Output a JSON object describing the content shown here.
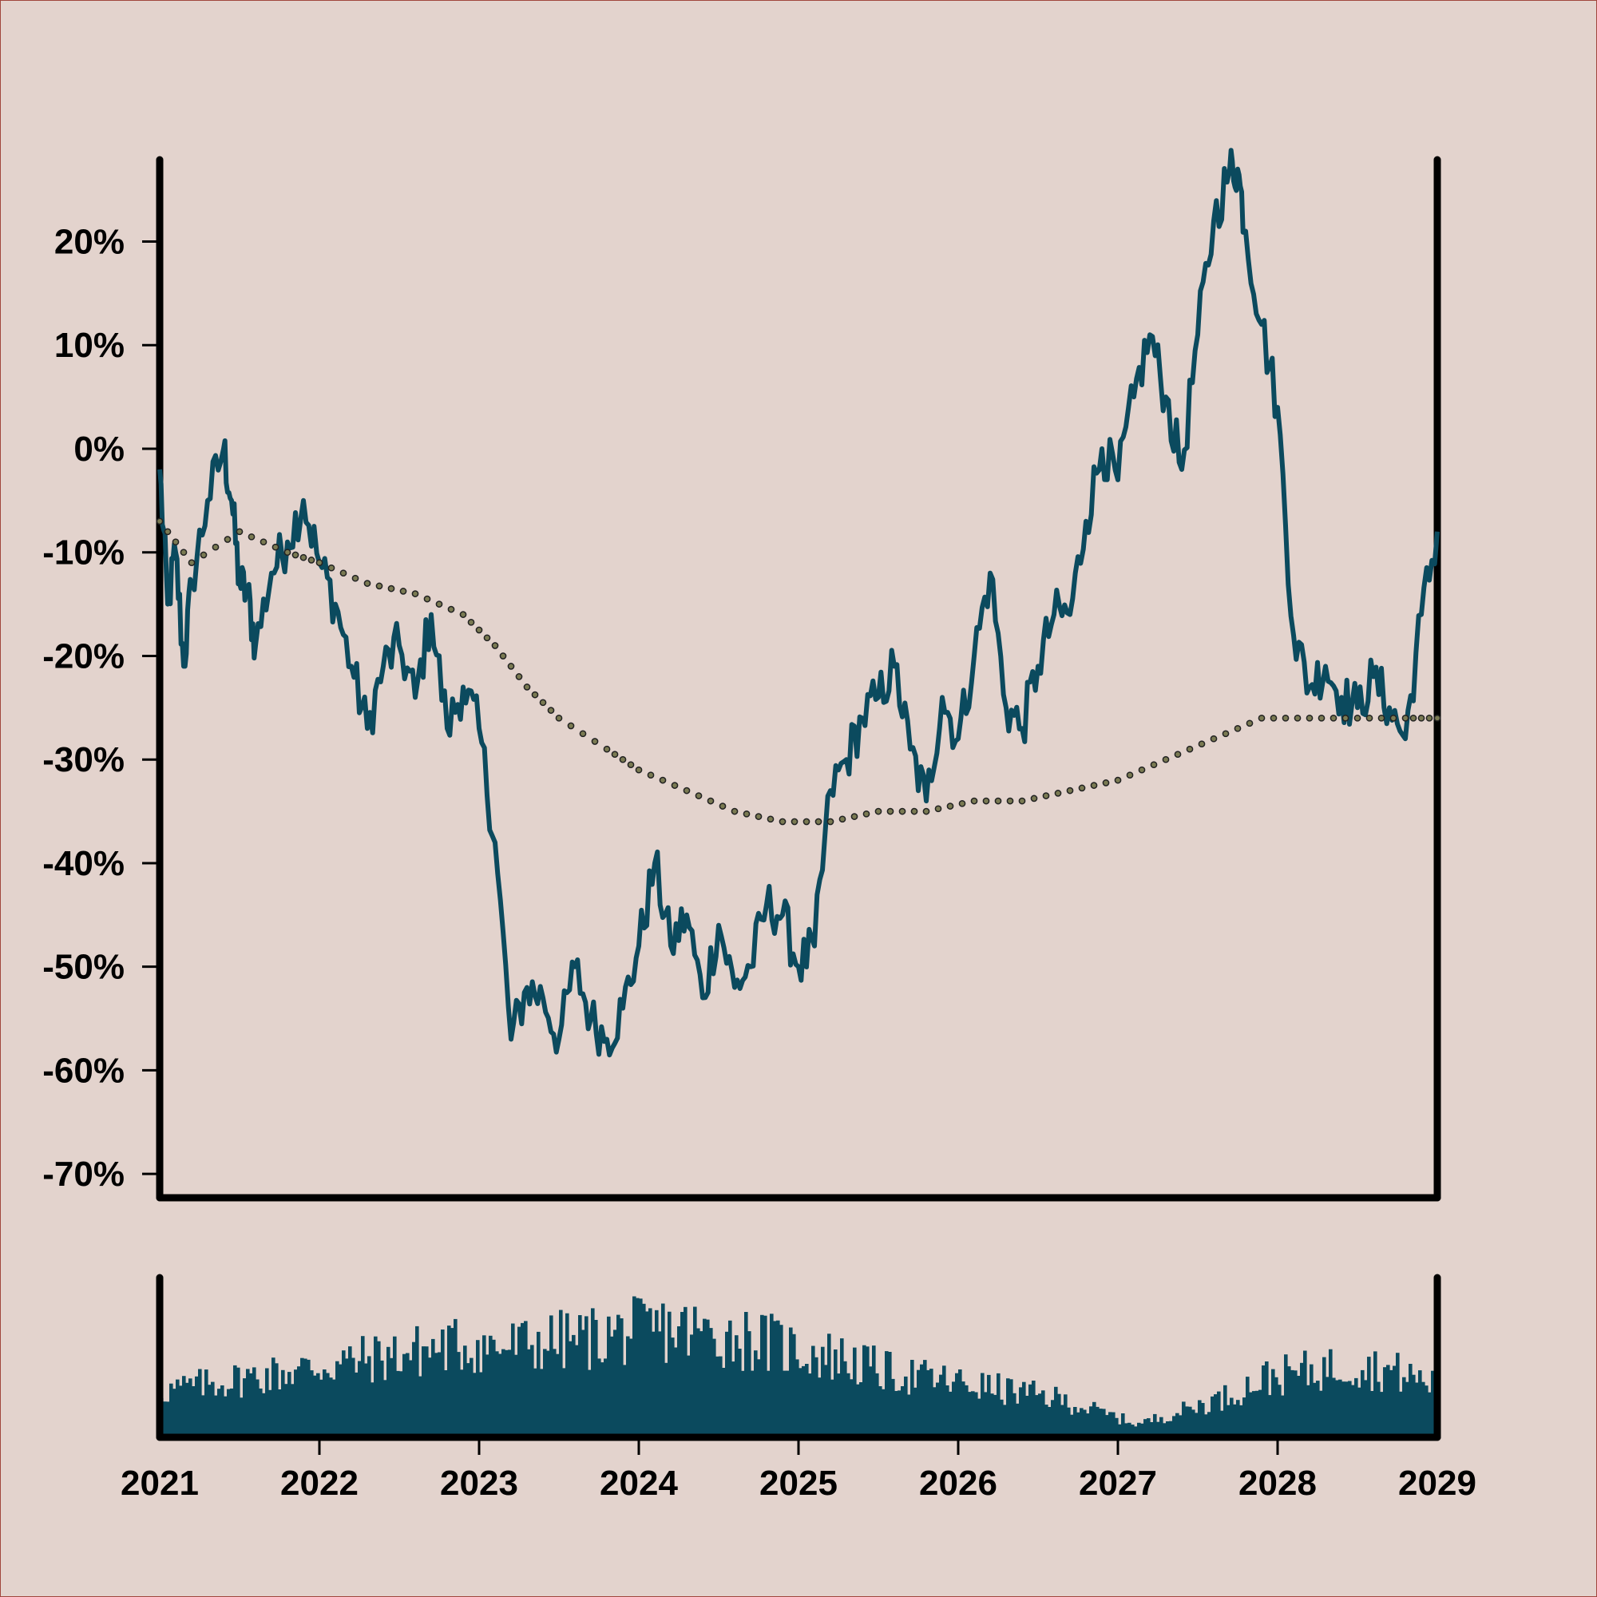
{
  "chart_data": {
    "type": "line",
    "title": "",
    "xlabel": "",
    "ylabel": "",
    "x_tick_labels": [
      "2021",
      "2022",
      "2023",
      "2024",
      "2025",
      "2026",
      "2027",
      "2028",
      "2029"
    ],
    "y_tick_labels": [
      "20%",
      "10%",
      "0%",
      "-10%",
      "-20%",
      "-30%",
      "-40%",
      "-50%",
      "-60%",
      "-70%"
    ],
    "y_ticks": [
      20,
      10,
      0,
      -10,
      -20,
      -30,
      -40,
      -50,
      -60,
      -70
    ],
    "xlim": [
      2021.0,
      2029.0
    ],
    "ylim": [
      -72.3,
      27.9
    ],
    "grid": false,
    "legend": "none",
    "colors": {
      "price": "#0b4a5e",
      "trend": "#7a7a52",
      "volume": "#0b4a5e",
      "axis": "#000000",
      "background": "#e3d3cd"
    },
    "series": [
      {
        "style": "line",
        "x": [
          2021.0,
          2021.05,
          2021.1,
          2021.15,
          2021.2,
          2021.3,
          2021.4,
          2021.45,
          2021.5,
          2021.55,
          2021.6,
          2021.7,
          2021.8,
          2021.9,
          2022.0,
          2022.1,
          2022.2,
          2022.3,
          2022.4,
          2022.5,
          2022.6,
          2022.7,
          2022.8,
          2022.9,
          2023.0,
          2023.1,
          2023.2,
          2023.3,
          2023.4,
          2023.5,
          2023.6,
          2023.7,
          2023.8,
          2023.9,
          2024.0,
          2024.1,
          2024.2,
          2024.3,
          2024.4,
          2024.5,
          2024.6,
          2024.7,
          2024.8,
          2024.9,
          2025.0,
          2025.1,
          2025.2,
          2025.3,
          2025.4,
          2025.5,
          2025.6,
          2025.7,
          2025.8,
          2025.9,
          2026.0,
          2026.1,
          2026.2,
          2026.3,
          2026.4,
          2026.5,
          2026.6,
          2026.7,
          2026.8,
          2026.9,
          2027.0,
          2027.1,
          2027.2,
          2027.3,
          2027.4,
          2027.5,
          2027.6,
          2027.7,
          2027.75,
          2027.8,
          2027.9,
          2028.0,
          2028.1,
          2028.2,
          2028.3,
          2028.4,
          2028.5,
          2028.6,
          2028.7,
          2028.8,
          2028.9,
          2029.0
        ],
        "y": [
          -2,
          -15,
          -10,
          -21,
          -13,
          -5,
          0,
          -5,
          -13,
          -14,
          -19,
          -12,
          -9,
          -5,
          -11,
          -15,
          -21,
          -27,
          -21,
          -19,
          -24,
          -16,
          -27,
          -23,
          -27,
          -38,
          -57,
          -52,
          -53,
          -57,
          -50,
          -55,
          -57,
          -54,
          -48,
          -40,
          -48,
          -45,
          -53,
          -46,
          -52,
          -50,
          -44,
          -45,
          -50,
          -48,
          -33,
          -30,
          -26,
          -24,
          -21,
          -29,
          -34,
          -24,
          -28,
          -20,
          -12,
          -25,
          -27,
          -21,
          -16,
          -16,
          -7,
          0,
          -3,
          5,
          11,
          5,
          -2,
          11,
          22,
          27,
          27,
          21,
          12,
          4,
          -18,
          -23,
          -21,
          -24,
          -25,
          -22,
          -25,
          -28,
          -16,
          -8
        ],
        "labels_printed": false
      },
      {
        "style": "dotted",
        "x": [
          2021.0,
          2021.2,
          2021.5,
          2021.8,
          2022.0,
          2022.3,
          2022.6,
          2022.9,
          2023.1,
          2023.3,
          2023.5,
          2023.8,
          2024.0,
          2024.3,
          2024.6,
          2024.9,
          2025.2,
          2025.5,
          2025.8,
          2026.1,
          2026.4,
          2026.7,
          2027.0,
          2027.3,
          2027.6,
          2027.9,
          2028.2,
          2028.5,
          2028.8,
          2029.0
        ],
        "y": [
          -7,
          -11,
          -8,
          -10,
          -11,
          -13,
          -14,
          -16,
          -19,
          -23,
          -26,
          -29,
          -31,
          -33,
          -35,
          -36,
          -36,
          -35,
          -35,
          -34,
          -34,
          -33,
          -32,
          -30,
          -28,
          -26,
          -26,
          -26,
          -26,
          -26
        ]
      }
    ],
    "volume_panel": {
      "type": "bar",
      "x_range": [
        2021.0,
        2029.0
      ],
      "bar_count": 400,
      "relative_heights": [
        0.35,
        0.4,
        0.45,
        0.5,
        0.55,
        0.6,
        0.65,
        0.7,
        0.68,
        0.72,
        0.75,
        0.8,
        0.82,
        0.78,
        0.74,
        0.66,
        0.6,
        0.5,
        0.45,
        0.4,
        0.35,
        0.3,
        0.2,
        0.1,
        0.2,
        0.3,
        0.45,
        0.5,
        0.55,
        0.5,
        0.4
      ],
      "value_labels_printed": false
    }
  }
}
